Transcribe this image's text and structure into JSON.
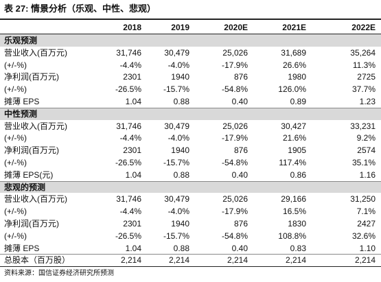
{
  "title": "表 27: 情景分析（乐观、中性、悲观）",
  "columns": [
    "2018",
    "2019",
    "2020E",
    "2021E",
    "2022E"
  ],
  "sections": [
    {
      "name": "乐观预测",
      "rows": [
        {
          "label": "营业收入(百万元)",
          "values": [
            "31,746",
            "30,479",
            "25,026",
            "31,689",
            "35,264"
          ]
        },
        {
          "label": "(+/-%)",
          "values": [
            "-4.4%",
            "-4.0%",
            "-17.9%",
            "26.6%",
            "11.3%"
          ]
        },
        {
          "label": "净利润(百万元)",
          "values": [
            "2301",
            "1940",
            "876",
            "1980",
            "2725"
          ]
        },
        {
          "label": "(+/-%)",
          "values": [
            "-26.5%",
            "-15.7%",
            "-54.8%",
            "126.0%",
            "37.7%"
          ]
        },
        {
          "label": "摊薄 EPS",
          "values": [
            "1.04",
            "0.88",
            "0.40",
            "0.89",
            "1.23"
          ]
        }
      ]
    },
    {
      "name": "中性预测",
      "rows": [
        {
          "label": "营业收入(百万元)",
          "values": [
            "31,746",
            "30,479",
            "25,026",
            "30,427",
            "33,231"
          ]
        },
        {
          "label": "(+/-%)",
          "values": [
            "-4.4%",
            "-4.0%",
            "-17.9%",
            "21.6%",
            "9.2%"
          ]
        },
        {
          "label": "净利润(百万元)",
          "values": [
            "2301",
            "1940",
            "876",
            "1905",
            "2574"
          ]
        },
        {
          "label": "(+/-%)",
          "values": [
            "-26.5%",
            "-15.7%",
            "-54.8%",
            "117.4%",
            "35.1%"
          ]
        },
        {
          "label": "摊薄 EPS(元)",
          "values": [
            "1.04",
            "0.88",
            "0.40",
            "0.86",
            "1.16"
          ]
        }
      ]
    },
    {
      "name": "悲观的预测",
      "rows": [
        {
          "label": "营业收入(百万元)",
          "values": [
            "31,746",
            "30,479",
            "25,026",
            "29,166",
            "31,250"
          ]
        },
        {
          "label": "(+/-%)",
          "values": [
            "-4.4%",
            "-4.0%",
            "-17.9%",
            "16.5%",
            "7.1%"
          ]
        },
        {
          "label": "净利润(百万元)",
          "values": [
            "2301",
            "1940",
            "876",
            "1830",
            "2427"
          ]
        },
        {
          "label": "(+/-%)",
          "values": [
            "-26.5%",
            "-15.7%",
            "-54.8%",
            "108.8%",
            "32.6%"
          ]
        },
        {
          "label": "摊薄 EPS",
          "values": [
            "1.04",
            "0.88",
            "0.40",
            "0.83",
            "1.10"
          ]
        }
      ]
    }
  ],
  "total": {
    "label": "总股本（百万股）",
    "values": [
      "2,214",
      "2,214",
      "2,214",
      "2,214",
      "2,214"
    ]
  },
  "source": "资料来源：国信证券经济研究所预测"
}
